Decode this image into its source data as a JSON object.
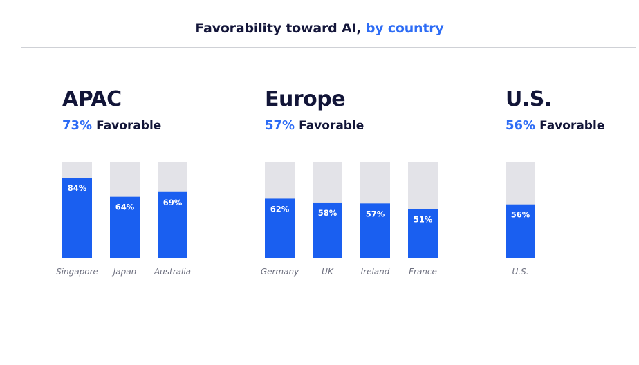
{
  "header": {
    "title_main": "Favorability toward AI,",
    "title_accent": "by country"
  },
  "colors": {
    "bar": "#1a5ff0",
    "track": "#e3e3e8",
    "accent": "#2d6cf5",
    "text": "#121538"
  },
  "chart_data": [
    {
      "type": "bar",
      "title": "APAC",
      "summary_value": "73%",
      "summary_label": "Favorable",
      "categories": [
        "Singapore",
        "Japan",
        "Australia"
      ],
      "values": [
        84,
        64,
        69
      ],
      "ylim": [
        0,
        100
      ]
    },
    {
      "type": "bar",
      "title": "Europe",
      "summary_value": "57%",
      "summary_label": "Favorable",
      "categories": [
        "Germany",
        "UK",
        "Ireland",
        "France"
      ],
      "values": [
        62,
        58,
        57,
        51
      ],
      "ylim": [
        0,
        100
      ]
    },
    {
      "type": "bar",
      "title": "U.S.",
      "summary_value": "56%",
      "summary_label": "Favorable",
      "categories": [
        "U.S."
      ],
      "values": [
        56
      ],
      "ylim": [
        0,
        100
      ]
    }
  ]
}
